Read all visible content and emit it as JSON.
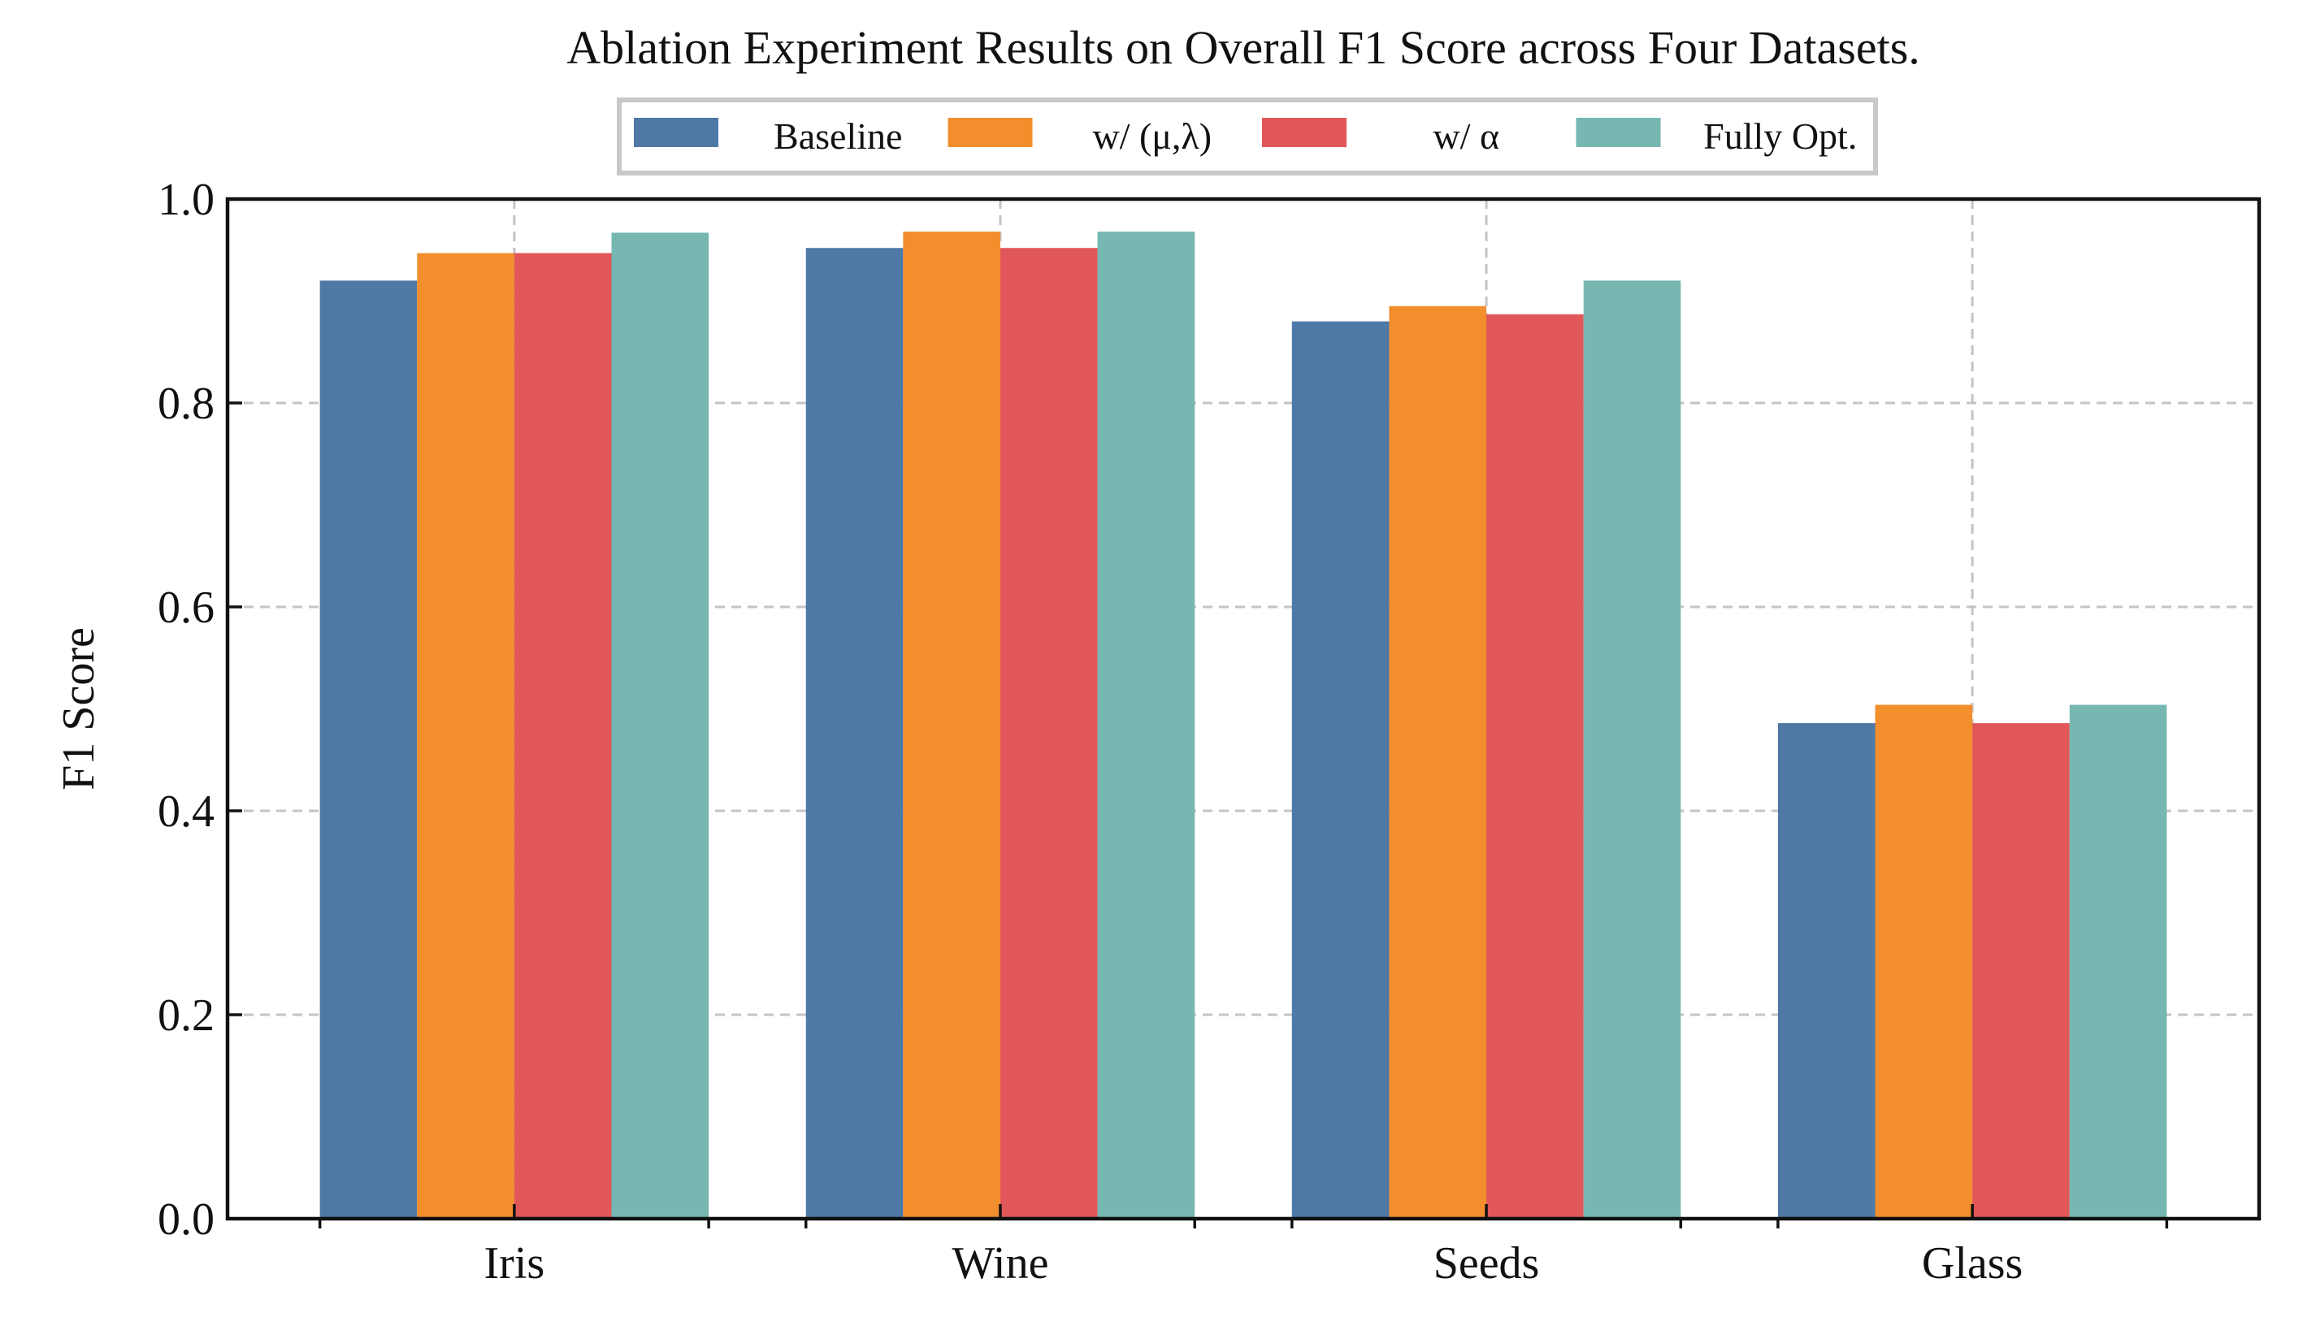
{
  "chart_data": {
    "type": "bar",
    "title": "Ablation Experiment Results on Overall F1 Score across Four Datasets.",
    "xlabel": "",
    "ylabel": "F1 Score",
    "ylim": [
      0,
      1.0
    ],
    "yticks": [
      "0.0",
      "0.2",
      "0.4",
      "0.6",
      "0.8",
      "1.0"
    ],
    "grid": true,
    "legend_position": "top-center",
    "categories": [
      "Iris",
      "Wine",
      "Seeds",
      "Glass"
    ],
    "series": [
      {
        "name": "Baseline",
        "color": "#4e78a6",
        "values": [
          0.92,
          0.952,
          0.88,
          0.486
        ]
      },
      {
        "name": "w/ (μ,λ)",
        "color": "#f28e2c",
        "values": [
          0.947,
          0.968,
          0.895,
          0.504
        ]
      },
      {
        "name": "w/ α",
        "color": "#e15759",
        "values": [
          0.947,
          0.952,
          0.887,
          0.486
        ]
      },
      {
        "name": "Fully Opt.",
        "color": "#76b7b2",
        "values": [
          0.967,
          0.968,
          0.92,
          0.504
        ]
      }
    ]
  }
}
